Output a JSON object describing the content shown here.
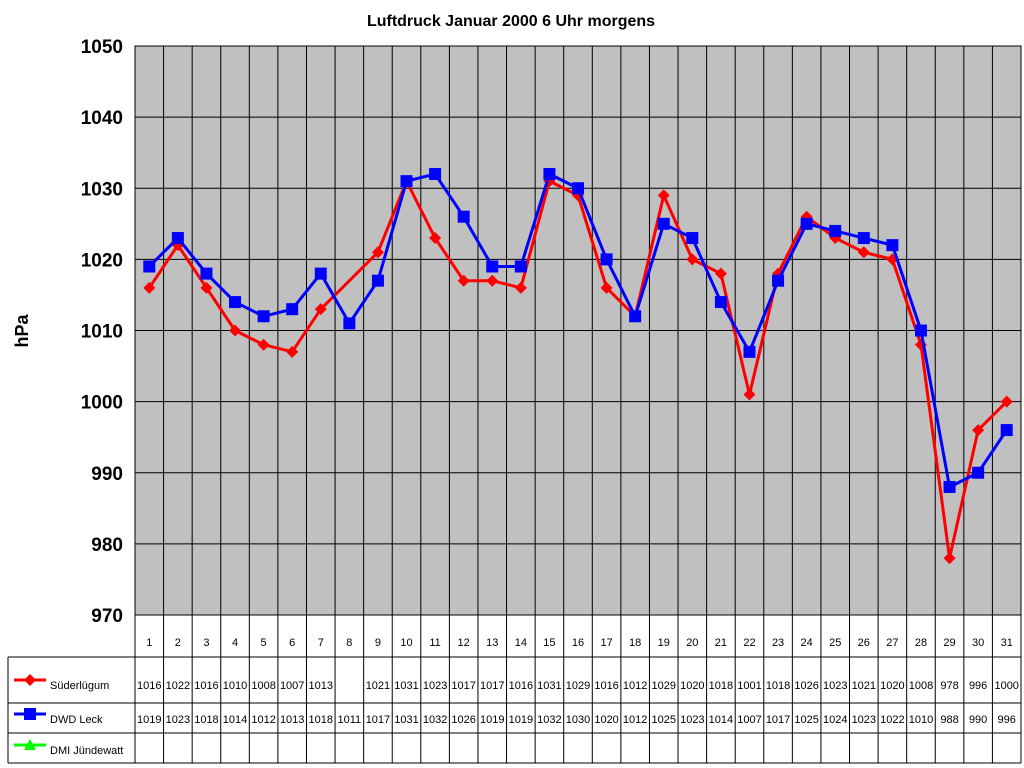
{
  "chart_data": {
    "type": "line",
    "title": "Luftdruck Januar 2000 6 Uhr morgens",
    "ylabel": "hPa",
    "xlabel": "",
    "ylim": [
      970,
      1050
    ],
    "yticks": [
      970,
      980,
      990,
      1000,
      1010,
      1020,
      1030,
      1040,
      1050
    ],
    "categories": [
      "1",
      "2",
      "3",
      "4",
      "5",
      "6",
      "7",
      "8",
      "9",
      "10",
      "11",
      "12",
      "13",
      "14",
      "15",
      "16",
      "17",
      "18",
      "19",
      "20",
      "21",
      "22",
      "23",
      "24",
      "25",
      "26",
      "27",
      "28",
      "29",
      "30",
      "31"
    ],
    "grid": true,
    "plot_background": "#c0c0c0",
    "legend": "data-table-left",
    "series": [
      {
        "name": "Süderlügum",
        "color": "#ff0000",
        "marker": "diamond",
        "values": [
          1016,
          1022,
          1016,
          1010,
          1008,
          1007,
          1013,
          null,
          1021,
          1031,
          1023,
          1017,
          1017,
          1016,
          1031,
          1029,
          1016,
          1012,
          1029,
          1020,
          1018,
          1001,
          1018,
          1026,
          1023,
          1021,
          1020,
          1008,
          978,
          996,
          1000
        ]
      },
      {
        "name": "DWD Leck",
        "color": "#0000ff",
        "marker": "square",
        "values": [
          1019,
          1023,
          1018,
          1014,
          1012,
          1013,
          1018,
          1011,
          1017,
          1031,
          1032,
          1026,
          1019,
          1019,
          1032,
          1030,
          1020,
          1012,
          1025,
          1023,
          1014,
          1007,
          1017,
          1025,
          1024,
          1023,
          1022,
          1010,
          988,
          990,
          996
        ]
      },
      {
        "name": "DMI Jündewatt",
        "color": "#00ff00",
        "marker": "triangle",
        "values": [
          null,
          null,
          null,
          null,
          null,
          null,
          null,
          null,
          null,
          null,
          null,
          null,
          null,
          null,
          null,
          null,
          null,
          null,
          null,
          null,
          null,
          null,
          null,
          null,
          null,
          null,
          null,
          null,
          null,
          null,
          null
        ]
      }
    ]
  }
}
